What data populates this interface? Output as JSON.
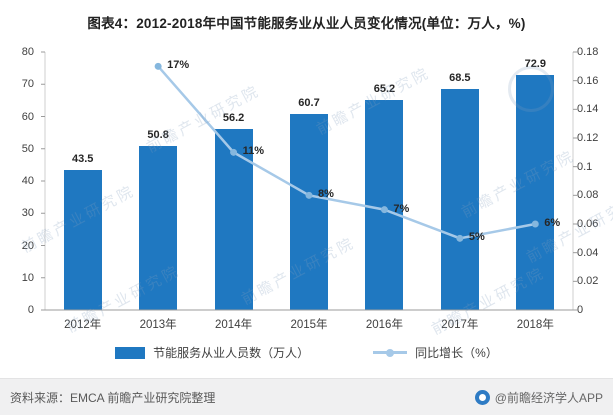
{
  "title": "图表4：2012-2018年中国节能服务业从业人员变化情况(单位：万人，%)",
  "watermark": "前瞻产业研究院",
  "footer": {
    "source": "资料来源：EMCA 前瞻产业研究院整理",
    "brand": "@前瞻经济学人APP"
  },
  "legend": [
    {
      "label": "节能服务从业人员数（万人）",
      "type": "bar"
    },
    {
      "label": "同比增长（%）",
      "type": "line"
    }
  ],
  "colors": {
    "bar": "#1F78C1",
    "line": "#A6C9E8",
    "marker": "#85B7DE",
    "axis": "#9B9B9B",
    "label": "#262626"
  },
  "chart_data": {
    "type": "bar+line",
    "title": "图表4：2012-2018年中国节能服务业从业人员变化情况(单位：万人，%)",
    "categories": [
      "2012年",
      "2013年",
      "2014年",
      "2015年",
      "2016年",
      "2017年",
      "2018年"
    ],
    "series": [
      {
        "name": "节能服务从业人员数（万人）",
        "type": "bar",
        "axis": "left",
        "values": [
          43.5,
          50.8,
          56.2,
          60.7,
          65.2,
          68.5,
          72.9
        ],
        "labels": [
          "43.5",
          "50.8",
          "56.2",
          "60.7",
          "65.2",
          "68.5",
          "72.9"
        ]
      },
      {
        "name": "同比增长（%）",
        "type": "line",
        "axis": "right",
        "values": [
          null,
          0.17,
          0.11,
          0.08,
          0.07,
          0.05,
          0.06
        ],
        "labels": [
          null,
          "17%",
          "11%",
          "8%",
          "7%",
          "5%",
          "6%"
        ]
      }
    ],
    "left_axis": {
      "min": 0,
      "max": 80,
      "step": 10,
      "ticks": [
        0,
        10,
        20,
        30,
        40,
        50,
        60,
        70,
        80
      ],
      "tick_labels": [
        "0",
        "10",
        "20",
        "30",
        "40",
        "50",
        "60",
        "70",
        "80"
      ]
    },
    "right_axis": {
      "min": 0,
      "max": 0.18,
      "step": 0.02,
      "ticks": [
        0,
        0.02,
        0.04,
        0.06,
        0.08,
        0.1,
        0.12,
        0.14,
        0.16,
        0.18
      ],
      "tick_labels": [
        "0",
        "0.02",
        "0.04",
        "0.06",
        "0.08",
        "0.1",
        "0.12",
        "0.14",
        "0.16",
        "0.18"
      ]
    },
    "grid": false,
    "legend_position": "bottom"
  }
}
